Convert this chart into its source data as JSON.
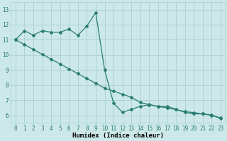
{
  "line1_x": [
    0,
    1,
    2,
    3,
    4,
    5,
    6,
    7,
    8,
    9,
    10,
    11,
    12,
    13,
    14,
    15,
    16,
    17,
    18,
    19,
    20,
    21,
    22,
    23
  ],
  "line1_y": [
    11.0,
    11.6,
    11.3,
    11.6,
    11.5,
    11.5,
    11.7,
    11.3,
    11.9,
    12.8,
    9.0,
    6.8,
    6.2,
    6.4,
    6.6,
    6.7,
    6.6,
    6.6,
    6.4,
    6.2,
    6.1,
    6.1,
    6.0,
    5.8
  ],
  "line2_x": [
    0,
    1,
    2,
    3,
    4,
    5,
    6,
    7,
    8,
    9,
    10,
    11,
    12,
    13,
    14,
    15,
    16,
    17,
    18,
    19,
    20,
    21,
    22,
    23
  ],
  "line2_y": [
    11.0,
    10.68,
    10.36,
    10.04,
    9.72,
    9.4,
    9.08,
    8.76,
    8.44,
    8.12,
    7.8,
    7.6,
    7.4,
    7.2,
    6.85,
    6.72,
    6.58,
    6.5,
    6.38,
    6.25,
    6.18,
    6.1,
    6.03,
    5.82
  ],
  "line_color": "#2a7d72",
  "bg_color": "#cce8e8",
  "grid_color": "#aacfcf",
  "xlabel": "Humidex (Indice chaleur)",
  "xlim": [
    -0.5,
    23.5
  ],
  "ylim": [
    5.5,
    13.5
  ],
  "yticks": [
    6,
    7,
    8,
    9,
    10,
    11,
    12,
    13
  ],
  "xticks": [
    0,
    1,
    2,
    3,
    4,
    5,
    6,
    7,
    8,
    9,
    10,
    11,
    12,
    13,
    14,
    15,
    16,
    17,
    18,
    19,
    20,
    21,
    22,
    23
  ],
  "marker": "D",
  "markersize": 2.0,
  "linewidth": 0.9,
  "xlabel_fontsize": 6.5,
  "tick_fontsize": 5.5
}
